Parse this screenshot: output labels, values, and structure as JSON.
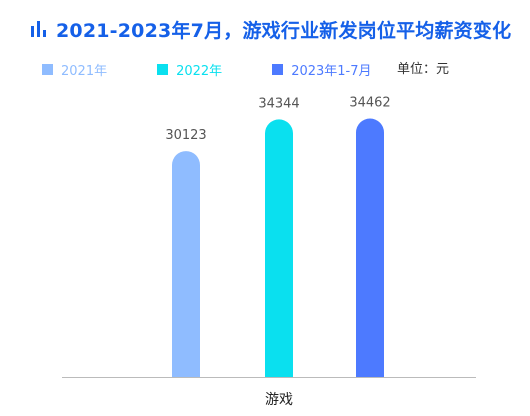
{
  "title": "2021-2023年7月，游戏行业新发岗位平均薪资变化",
  "title_icon": "bar-chart-icon",
  "unit_label": "单位：元",
  "colors": {
    "title": "#1560e8",
    "axis": "#bbbbbb",
    "series": [
      "#8fbcff",
      "#0ae0ef",
      "#4d7aff"
    ],
    "legend_text": [
      "#8fbcff",
      "#0ae0ef",
      "#4d7aff"
    ]
  },
  "chart_data": {
    "type": "bar",
    "categories": [
      "游戏"
    ],
    "series": [
      {
        "name": "2021年",
        "values": [
          30123
        ]
      },
      {
        "name": "2022年",
        "values": [
          34344
        ]
      },
      {
        "name": "2023年1-7月",
        "values": [
          34462
        ]
      }
    ],
    "ylim": [
      0,
      40000
    ],
    "grid": false,
    "legend_position": "top-left"
  }
}
